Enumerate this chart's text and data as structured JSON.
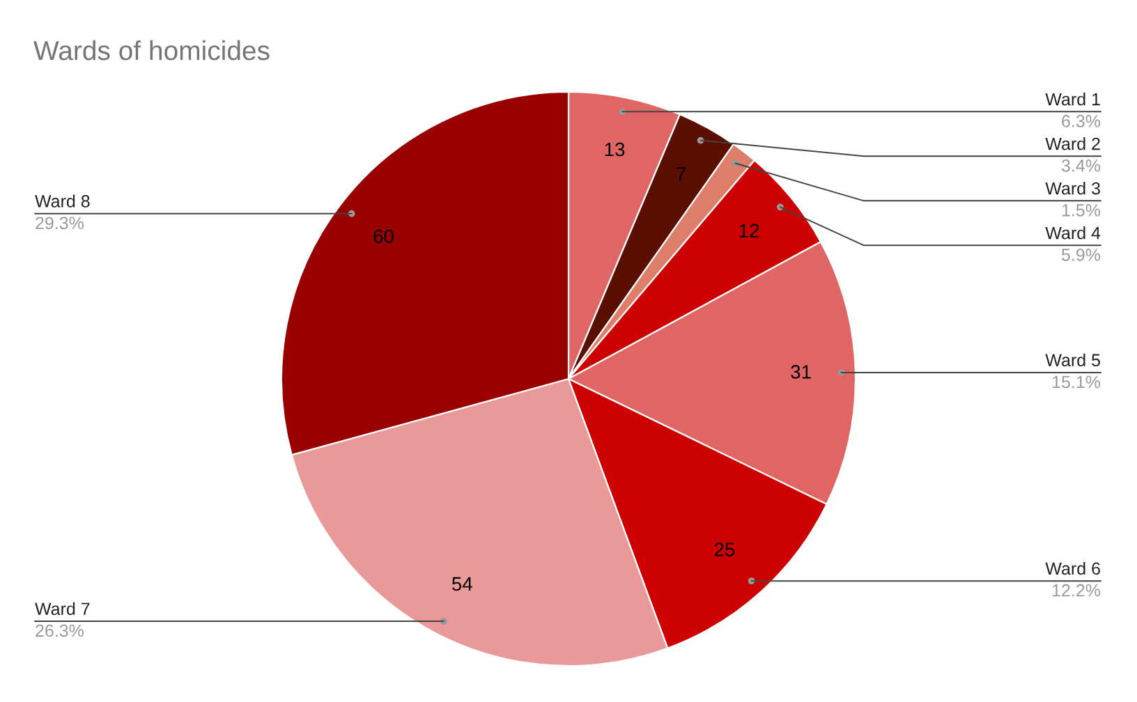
{
  "chart_data": {
    "type": "pie",
    "title": "Wards of homicides",
    "categories": [
      "Ward 1",
      "Ward 2",
      "Ward 3",
      "Ward 4",
      "Ward 5",
      "Ward 6",
      "Ward 7",
      "Ward 8"
    ],
    "values": [
      13,
      7,
      3,
      12,
      31,
      25,
      54,
      60
    ],
    "value_labels": [
      "13",
      "7",
      null,
      "12",
      "31",
      "25",
      "54",
      "60"
    ],
    "colors": [
      "#e06666",
      "#5b0f00",
      "#dd7e6b",
      "#cc0000",
      "#e06666",
      "#cc0000",
      "#ea9999",
      "#990000"
    ],
    "annotations": [
      {
        "text": "6.3%",
        "x": "Ward 1"
      },
      {
        "text": "3.4%",
        "x": "Ward 2"
      },
      {
        "text": "1.5%",
        "x": "Ward 3"
      },
      {
        "text": "5.9%",
        "x": "Ward 4"
      },
      {
        "text": "15.1%",
        "x": "Ward 5"
      },
      {
        "text": "12.2%",
        "x": "Ward 6"
      },
      {
        "text": "26.3%",
        "x": "Ward 7"
      },
      {
        "text": "29.3%",
        "x": "Ward 8"
      }
    ],
    "legend": false
  }
}
